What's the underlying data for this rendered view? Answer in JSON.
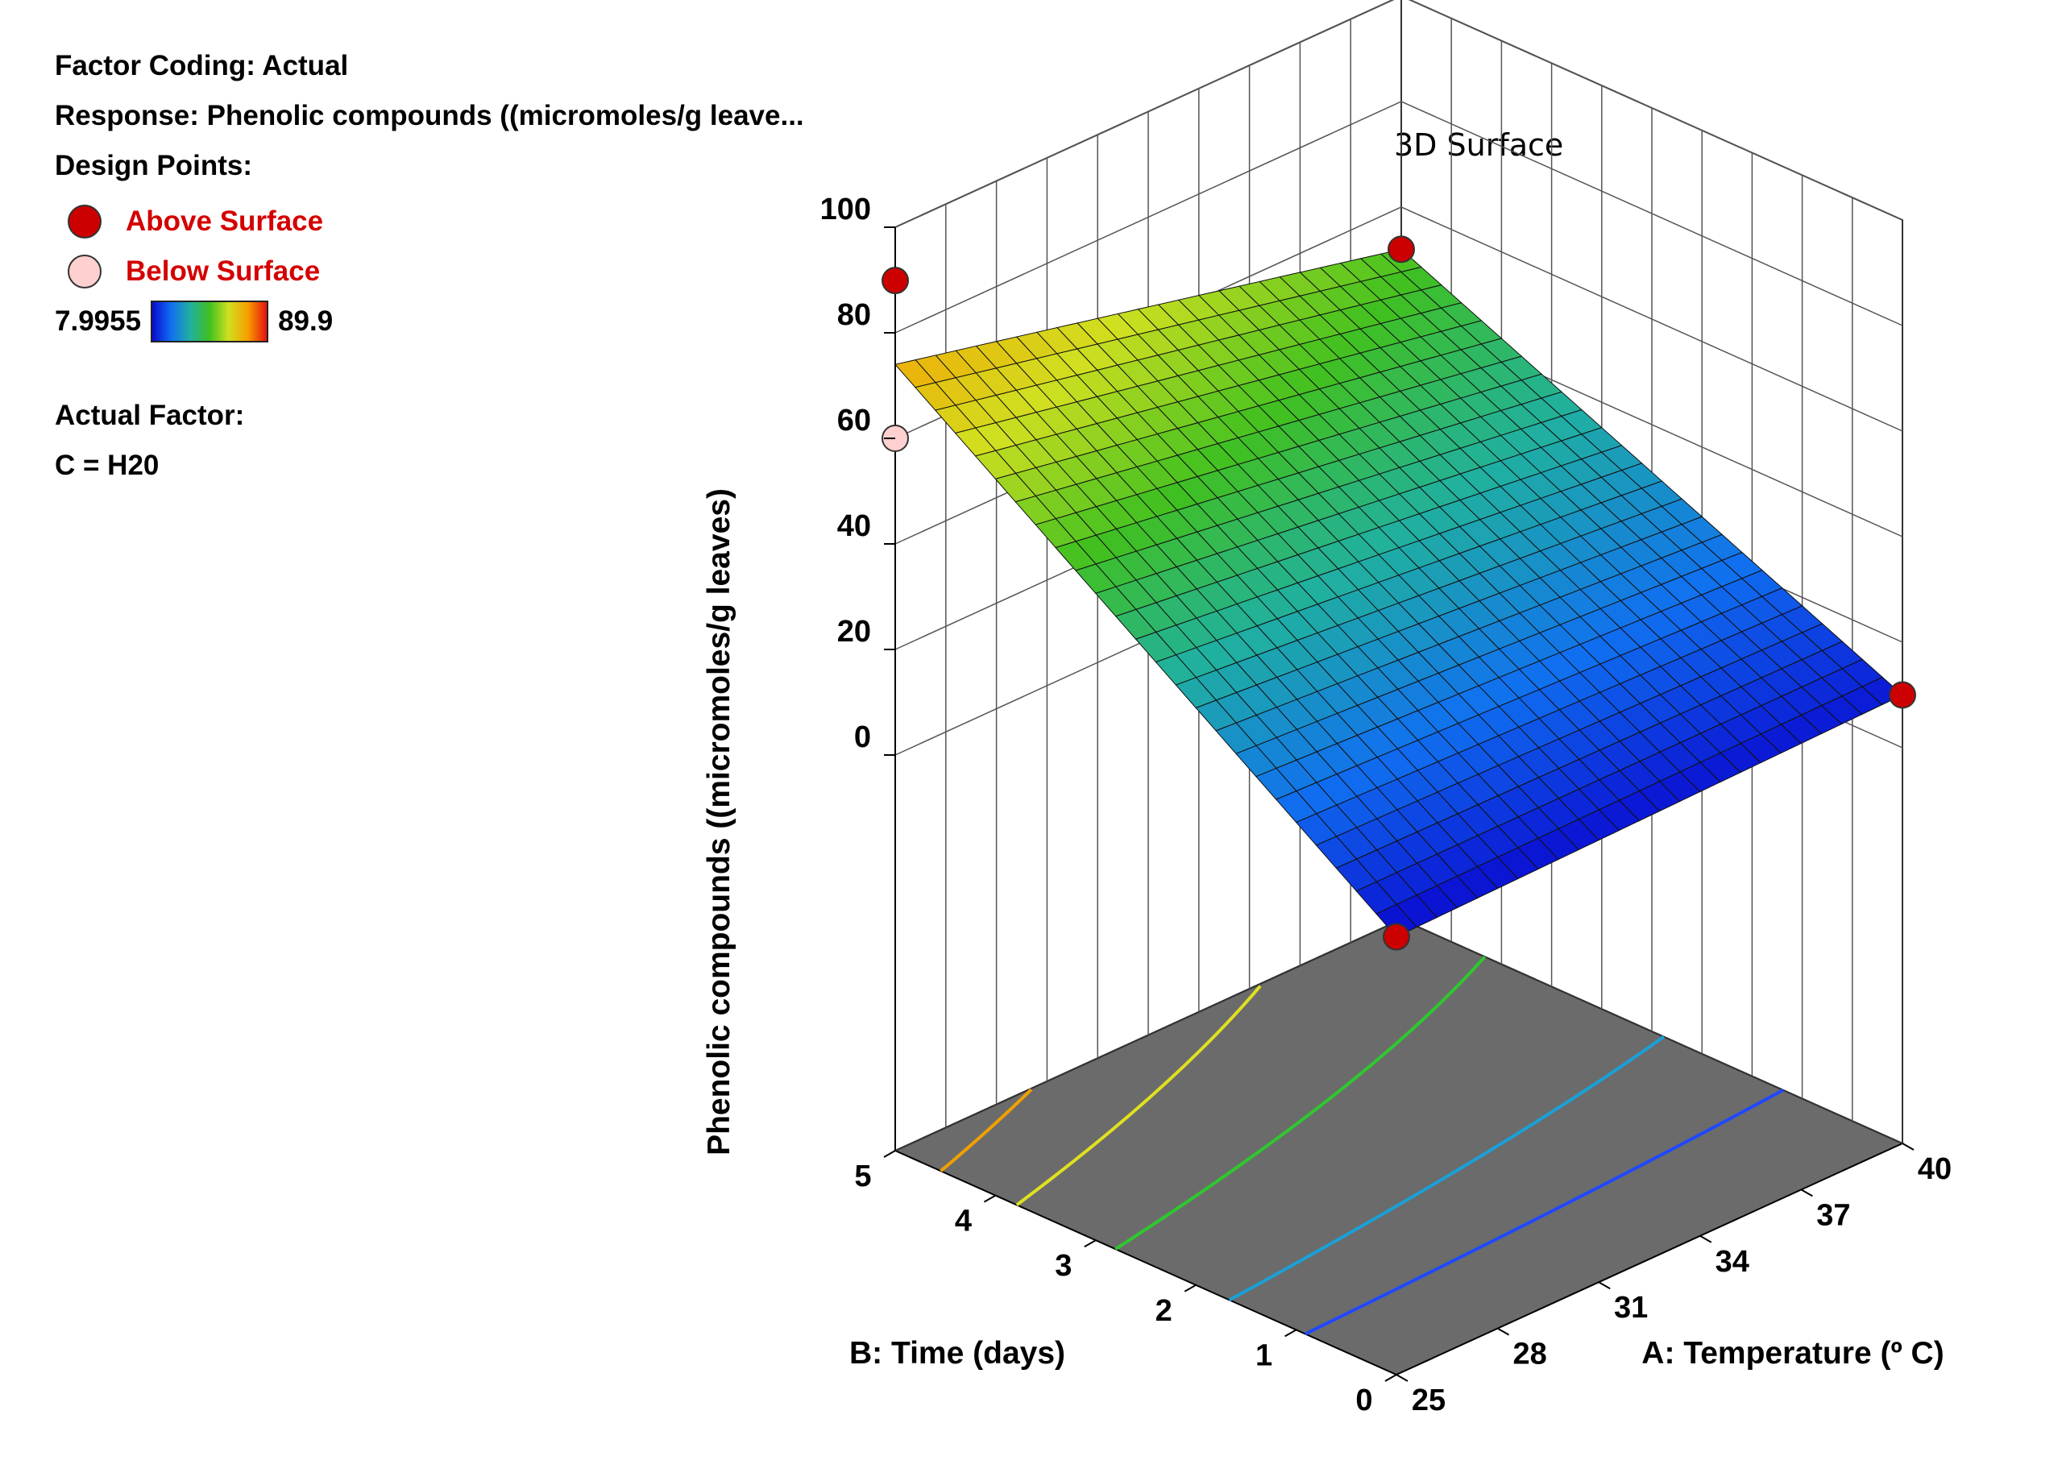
{
  "header": {
    "factor_coding": "Factor Coding: Actual",
    "response": "Response: Phenolic compounds  ((micromoles/g leave...",
    "design_points": "Design Points:",
    "above_label": "Above Surface",
    "below_label": "Below Surface",
    "ramp_min": "7.9955",
    "ramp_max": "89.9",
    "actual_factor": "Actual Factor:",
    "actual_factor_value": "C = H20"
  },
  "colors": {
    "above_point": "#cc0000",
    "below_point": "#ffd0d0",
    "floor": "#6b6b6b"
  },
  "chart_data": {
    "type": "surface3d",
    "title": "3D Surface",
    "xlabel": "A: Temperature  (º  C)",
    "ylabel": "B: Time (days)",
    "zlabel": "Phenolic compounds  ((micromoles/g leaves)",
    "xlim": [
      25,
      40
    ],
    "ylim": [
      0,
      5
    ],
    "zlim": [
      0,
      100
    ],
    "x_ticks": [
      "25",
      "28",
      "31",
      "34",
      "37",
      "40"
    ],
    "y_ticks": [
      "0",
      "1",
      "2",
      "3",
      "4",
      "5"
    ],
    "z_ticks": [
      "0",
      "20",
      "40",
      "60",
      "80",
      "100"
    ],
    "surface_corners": [
      {
        "x": 25,
        "y": 0,
        "z": 8
      },
      {
        "x": 40,
        "y": 0,
        "z": 10
      },
      {
        "x": 25,
        "y": 5,
        "z": 74
      },
      {
        "x": 40,
        "y": 5,
        "z": 52
      }
    ],
    "color_range": [
      7.9955,
      89.9
    ],
    "design_points": [
      {
        "x": 25,
        "y": 5,
        "z": 89.9,
        "position": "above"
      },
      {
        "x": 25,
        "y": 5,
        "z": 60,
        "position": "below"
      },
      {
        "x": 40,
        "y": 5,
        "z": 52,
        "position": "above"
      },
      {
        "x": 40,
        "y": 0,
        "z": 10,
        "position": "above"
      },
      {
        "x": 25,
        "y": 0,
        "z": 8,
        "position": "above"
      }
    ],
    "grid": true
  }
}
